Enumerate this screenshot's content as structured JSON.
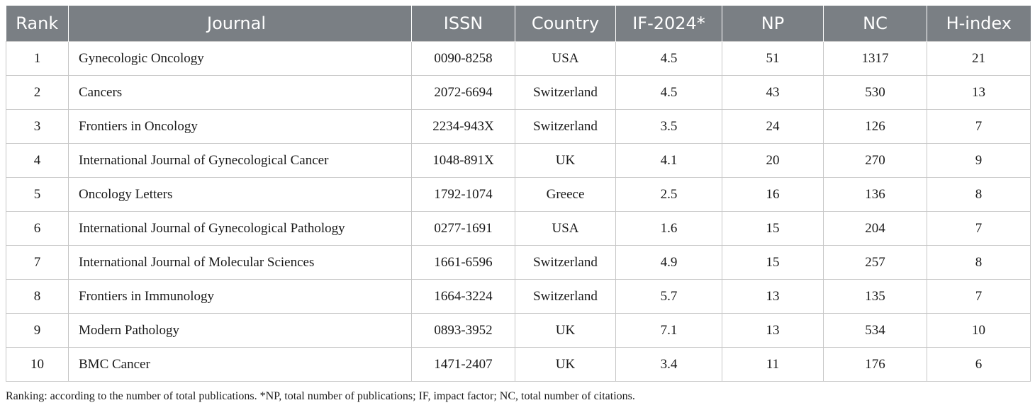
{
  "table": {
    "headers": [
      "Rank",
      "Journal",
      "ISSN",
      "Country",
      "IF-2024*",
      "NP",
      "NC",
      "H-index"
    ],
    "rows": [
      [
        "1",
        "Gynecologic Oncology",
        "0090-8258",
        "USA",
        "4.5",
        "51",
        "1317",
        "21"
      ],
      [
        "2",
        "Cancers",
        "2072-6694",
        "Switzerland",
        "4.5",
        "43",
        "530",
        "13"
      ],
      [
        "3",
        "Frontiers in Oncology",
        "2234-943X",
        "Switzerland",
        "3.5",
        "24",
        "126",
        "7"
      ],
      [
        "4",
        "International Journal of Gynecological Cancer",
        "1048-891X",
        "UK",
        "4.1",
        "20",
        "270",
        "9"
      ],
      [
        "5",
        "Oncology Letters",
        "1792-1074",
        "Greece",
        "2.5",
        "16",
        "136",
        "8"
      ],
      [
        "6",
        "International Journal of Gynecological Pathology",
        "0277-1691",
        "USA",
        "1.6",
        "15",
        "204",
        "7"
      ],
      [
        "7",
        "International Journal of Molecular Sciences",
        "1661-6596",
        "Switzerland",
        "4.9",
        "15",
        "257",
        "8"
      ],
      [
        "8",
        "Frontiers in Immunology",
        "1664-3224",
        "Switzerland",
        "5.7",
        "13",
        "135",
        "7"
      ],
      [
        "9",
        "Modern Pathology",
        "0893-3952",
        "UK",
        "7.1",
        "13",
        "534",
        "10"
      ],
      [
        "10",
        "BMC Cancer",
        "1471-2407",
        "UK",
        "3.4",
        "11",
        "176",
        "6"
      ]
    ]
  },
  "footnote": "Ranking: according to the number of total publications. *NP, total number of publications; IF, impact factor; NC, total number of citations."
}
